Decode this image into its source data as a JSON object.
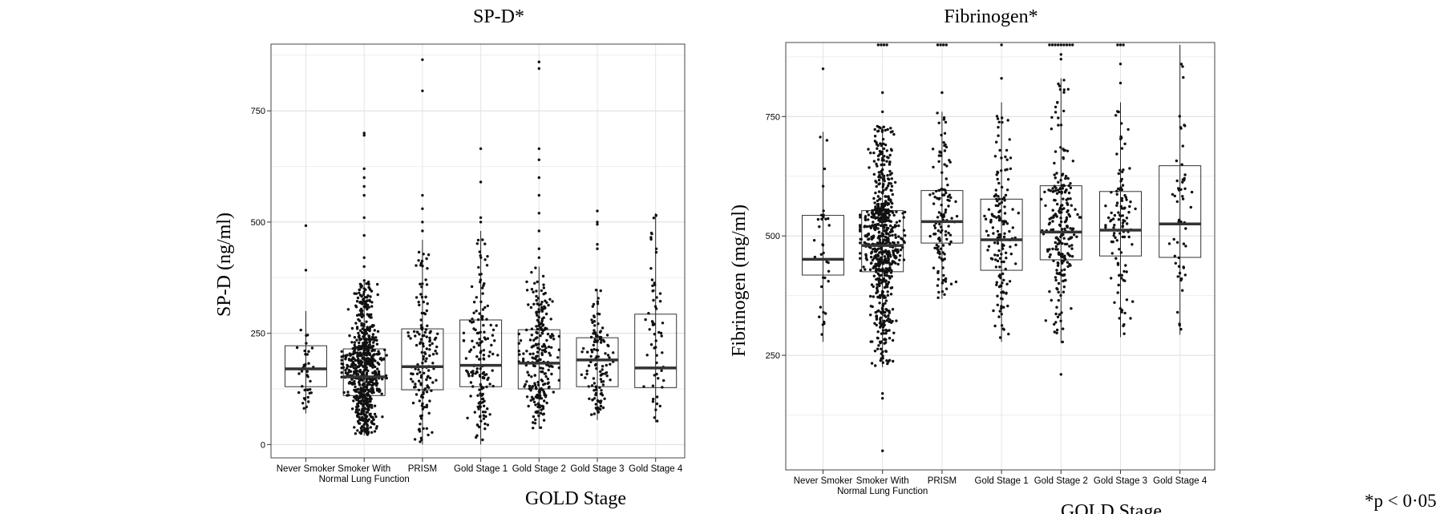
{
  "chart_data": [
    {
      "type": "box",
      "title": "SP-D*",
      "xlabel": "GOLD Stage",
      "ylabel": "SP-D (ng/ml)",
      "yticks": [
        "0",
        "250",
        "500",
        "750"
      ],
      "ylim": [
        -30,
        900
      ],
      "grid": true,
      "categories": [
        [
          "Never Smoker"
        ],
        [
          "Smoker With",
          "Normal Lung Function"
        ],
        [
          "PRISM"
        ],
        [
          "Gold Stage 1"
        ],
        [
          "Gold Stage 2"
        ],
        [
          "Gold Stage 3"
        ],
        [
          "Gold Stage 4"
        ]
      ],
      "boxes": [
        {
          "q1": 130,
          "median": 170,
          "q3": 222,
          "whisker_low": 70,
          "whisker_high": 300,
          "n": 40,
          "outliers": [
            392,
            492
          ]
        },
        {
          "q1": 110,
          "median": 152,
          "q3": 215,
          "whisker_low": 20,
          "whisker_high": 370,
          "n": 700,
          "outliers": [
            400,
            420,
            470,
            510,
            560,
            580,
            600,
            620,
            695,
            700
          ]
        },
        {
          "q1": 123,
          "median": 175,
          "q3": 260,
          "whisker_low": 0,
          "whisker_high": 460,
          "n": 150,
          "outliers": [
            480,
            500,
            530,
            560,
            795,
            865
          ]
        },
        {
          "q1": 130,
          "median": 178,
          "q3": 280,
          "whisker_low": 0,
          "whisker_high": 480,
          "n": 160,
          "outliers": [
            500,
            510,
            590,
            665
          ]
        },
        {
          "q1": 125,
          "median": 183,
          "q3": 258,
          "whisker_low": 35,
          "whisker_high": 400,
          "n": 250,
          "outliers": [
            420,
            440,
            480,
            520,
            560,
            600,
            640,
            665,
            845,
            860
          ]
        },
        {
          "q1": 130,
          "median": 190,
          "q3": 240,
          "whisker_low": 55,
          "whisker_high": 350,
          "n": 130,
          "outliers": [
            440,
            450,
            495,
            500,
            525
          ]
        },
        {
          "q1": 128,
          "median": 172,
          "q3": 293,
          "whisker_low": 50,
          "whisker_high": 520,
          "n": 60,
          "outliers": []
        }
      ]
    },
    {
      "type": "box",
      "title": "Fibrinogen*",
      "xlabel": "GOLD Stage",
      "ylabel": "Fibrinogen (mg/ml)",
      "yticks": [
        "250",
        "500",
        "750"
      ],
      "ylim": [
        10,
        905
      ],
      "grid": true,
      "categories": [
        [
          "Never Smoker"
        ],
        [
          "Smoker With",
          "Normal Lung Function"
        ],
        [
          "PRISM"
        ],
        [
          "Gold Stage 1"
        ],
        [
          "Gold Stage 2"
        ],
        [
          "Gold Stage 3"
        ],
        [
          "Gold Stage 4"
        ]
      ],
      "boxes": [
        {
          "q1": 418,
          "median": 451,
          "q3": 543,
          "whisker_low": 278,
          "whisker_high": 718,
          "n": 35,
          "outliers": [
            850
          ]
        },
        {
          "q1": 425,
          "median": 480,
          "q3": 553,
          "whisker_low": 225,
          "whisker_high": 730,
          "n": 700,
          "outliers": [
            50,
            160,
            170,
            760,
            800,
            900,
            900,
            900,
            900
          ]
        },
        {
          "q1": 485,
          "median": 530,
          "q3": 595,
          "whisker_low": 368,
          "whisker_high": 760,
          "n": 130,
          "outliers": [
            800,
            900,
            900,
            900,
            900
          ]
        },
        {
          "q1": 428,
          "median": 492,
          "q3": 577,
          "whisker_low": 278,
          "whisker_high": 780,
          "n": 160,
          "outliers": [
            830,
            900
          ]
        },
        {
          "q1": 450,
          "median": 508,
          "q3": 605,
          "whisker_low": 275,
          "whisker_high": 830,
          "n": 240,
          "outliers": [
            210,
            870,
            880,
            900,
            900,
            900,
            900,
            900,
            900,
            900,
            900,
            900
          ]
        },
        {
          "q1": 458,
          "median": 512,
          "q3": 593,
          "whisker_low": 288,
          "whisker_high": 780,
          "n": 110,
          "outliers": [
            820,
            860,
            900,
            900,
            900
          ]
        },
        {
          "q1": 455,
          "median": 525,
          "q3": 647,
          "whisker_low": 293,
          "whisker_high": 900,
          "n": 55,
          "outliers": []
        }
      ]
    }
  ],
  "footnote": "*p < 0·05"
}
